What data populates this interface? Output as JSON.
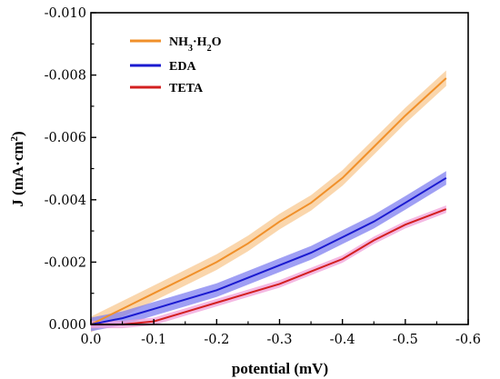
{
  "chart_data": {
    "type": "line",
    "title": "",
    "xlabel": "potential (mV)",
    "ylabel_main": "J (mA·cm",
    "ylabel_sup": "2",
    "ylabel_close": ")",
    "xlim": [
      0,
      -0.6
    ],
    "ylim": [
      0,
      -0.01
    ],
    "x_ticks": [
      0,
      -0.1,
      -0.2,
      -0.3,
      -0.4,
      -0.5,
      -0.6
    ],
    "x_tick_labels": [
      "0.0",
      "-0.1",
      "-0.2",
      "-0.3",
      "-0.4",
      "-0.5",
      "-0.6"
    ],
    "y_ticks": [
      0,
      -0.002,
      -0.004,
      -0.006,
      -0.008,
      -0.01
    ],
    "y_tick_labels": [
      "0.000",
      "-0.002",
      "-0.004",
      "-0.006",
      "-0.008",
      "-0.010"
    ],
    "grid": false,
    "legend_position": "top-left",
    "series": [
      {
        "name": "NH3·H2O",
        "legend_main": "NH",
        "legend_sub1": "3",
        "legend_mid": "·H",
        "legend_sub2": "2",
        "legend_end": "O",
        "line_color": "#f0902a",
        "band_color": "#f8c890",
        "x": [
          0.0,
          -0.05,
          -0.1,
          -0.15,
          -0.2,
          -0.25,
          -0.3,
          -0.35,
          -0.4,
          -0.45,
          -0.5,
          -0.565
        ],
        "y": [
          0.0,
          -0.0005,
          -0.001,
          -0.0015,
          -0.002,
          -0.0026,
          -0.0033,
          -0.0039,
          -0.0047,
          -0.0057,
          -0.0067,
          -0.0079
        ],
        "band": 0.00025
      },
      {
        "name": "EDA",
        "line_color": "#1a1ad0",
        "band_color": "#7f7ff0",
        "x": [
          0.0,
          -0.05,
          -0.1,
          -0.15,
          -0.2,
          -0.25,
          -0.3,
          -0.35,
          -0.4,
          -0.45,
          -0.5,
          -0.565
        ],
        "y": [
          0.0,
          -0.0002,
          -0.0005,
          -0.0008,
          -0.0011,
          -0.0015,
          -0.0019,
          -0.0023,
          -0.0028,
          -0.0033,
          -0.0039,
          -0.0047
        ],
        "band": 0.00022
      },
      {
        "name": "TETA",
        "line_color": "#d32020",
        "band_color": "#f0a0d8",
        "x": [
          0.0,
          -0.05,
          -0.1,
          -0.15,
          -0.2,
          -0.25,
          -0.3,
          -0.35,
          -0.4,
          -0.45,
          -0.5,
          -0.565
        ],
        "y": [
          0.0,
          0.0,
          -0.0001,
          -0.0004,
          -0.0007,
          -0.001,
          -0.0013,
          -0.0017,
          -0.0021,
          -0.0027,
          -0.0032,
          -0.0037
        ],
        "band": 0.00012
      }
    ]
  }
}
